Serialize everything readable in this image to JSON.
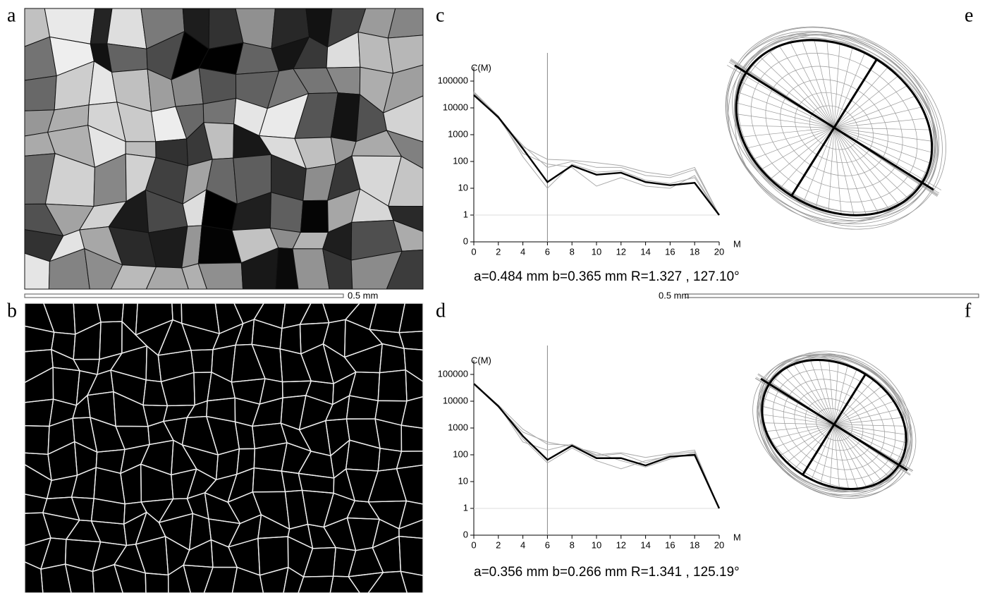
{
  "panel_labels": [
    "a",
    "b",
    "c",
    "d",
    "e",
    "f"
  ],
  "scale_bars": [
    "0.5 mm",
    "0.5 mm"
  ],
  "chart_data": [
    {
      "type": "line",
      "y_label": "C(M)",
      "x_label": "M",
      "log_scale": true,
      "caption": "a=0.484 mm  b=0.365 mm  R=1.327 , 127.10°",
      "x": [
        0,
        2,
        4,
        6,
        8,
        10,
        12,
        14,
        16,
        18,
        20
      ],
      "xlim": [
        0,
        20
      ],
      "xticks": [
        0,
        2,
        4,
        6,
        8,
        10,
        12,
        14,
        16,
        18,
        20
      ],
      "ylim": [
        0,
        100000
      ],
      "yticks": [
        0,
        1,
        10,
        100,
        1000,
        10000,
        100000
      ],
      "vline": 6,
      "hline": 1,
      "series": [
        {
          "color": "#aaaaaa",
          "values": [
            40000,
            5000,
            150,
            10,
            80,
            40,
            45,
            20,
            15,
            25,
            1
          ]
        },
        {
          "color": "#aaaaaa",
          "values": [
            35000,
            4000,
            400,
            60,
            100,
            60,
            60,
            30,
            25,
            50,
            1
          ]
        },
        {
          "color": "#aaaaaa",
          "values": [
            38000,
            4200,
            200,
            80,
            60,
            12,
            25,
            12,
            10,
            30,
            1
          ]
        },
        {
          "color": "#aaaaaa",
          "values": [
            33000,
            4800,
            350,
            120,
            110,
            90,
            70,
            40,
            30,
            60,
            1
          ]
        },
        {
          "color": "#000000",
          "values": [
            30000,
            4500,
            300,
            17,
            70,
            32,
            38,
            17,
            13,
            16,
            1
          ]
        }
      ]
    },
    {
      "type": "line",
      "y_label": "C(M)",
      "x_label": "M",
      "log_scale": true,
      "caption": "a=0.356 mm  b=0.266 mm  R=1.341 , 125.19°",
      "x": [
        0,
        2,
        4,
        6,
        8,
        10,
        12,
        14,
        16,
        18,
        20
      ],
      "xlim": [
        0,
        20
      ],
      "xticks": [
        0,
        2,
        4,
        6,
        8,
        10,
        12,
        14,
        16,
        18,
        20
      ],
      "ylim": [
        0,
        100000
      ],
      "yticks": [
        0,
        1,
        10,
        100,
        1000,
        10000,
        100000
      ],
      "vline": 6,
      "hline": 1,
      "series": [
        {
          "color": "#aaaaaa",
          "values": [
            48000,
            7000,
            300,
            150,
            250,
            90,
            110,
            50,
            100,
            130,
            1
          ]
        },
        {
          "color": "#aaaaaa",
          "values": [
            44000,
            6000,
            700,
            300,
            200,
            120,
            60,
            35,
            70,
            120,
            1
          ]
        },
        {
          "color": "#aaaaaa",
          "values": [
            46000,
            6800,
            400,
            50,
            180,
            60,
            30,
            60,
            90,
            90,
            1
          ]
        },
        {
          "color": "#aaaaaa",
          "values": [
            42000,
            7200,
            900,
            250,
            230,
            100,
            120,
            80,
            110,
            150,
            1
          ]
        },
        {
          "color": "#000000",
          "values": [
            45000,
            6500,
            500,
            65,
            220,
            75,
            75,
            40,
            85,
            100,
            1
          ]
        }
      ]
    }
  ]
}
